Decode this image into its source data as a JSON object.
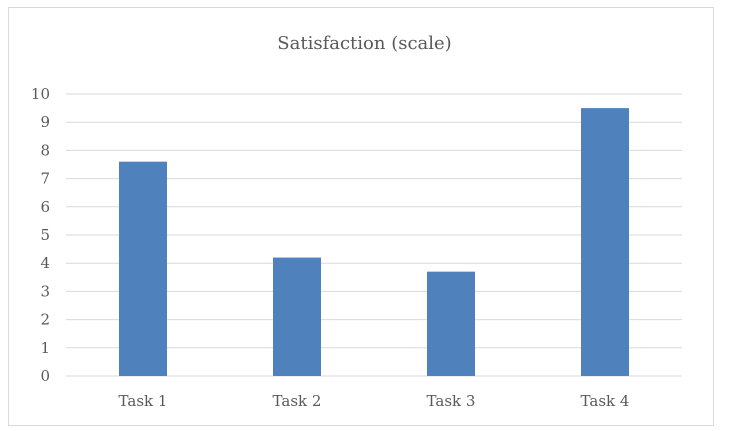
{
  "chart_data": {
    "type": "bar",
    "title": "Satisfaction (scale)",
    "categories": [
      "Task 1",
      "Task 2",
      "Task 3",
      "Task 4"
    ],
    "values": [
      7.6,
      4.2,
      3.7,
      9.5
    ],
    "ylim": [
      0,
      10
    ],
    "yticks": [
      0,
      1,
      2,
      3,
      4,
      5,
      6,
      7,
      8,
      9,
      10
    ],
    "grid": true,
    "legend": "none",
    "bar_color": "#4f81bd",
    "grid_color": "#d9d9d9",
    "text_color": "#595959"
  }
}
